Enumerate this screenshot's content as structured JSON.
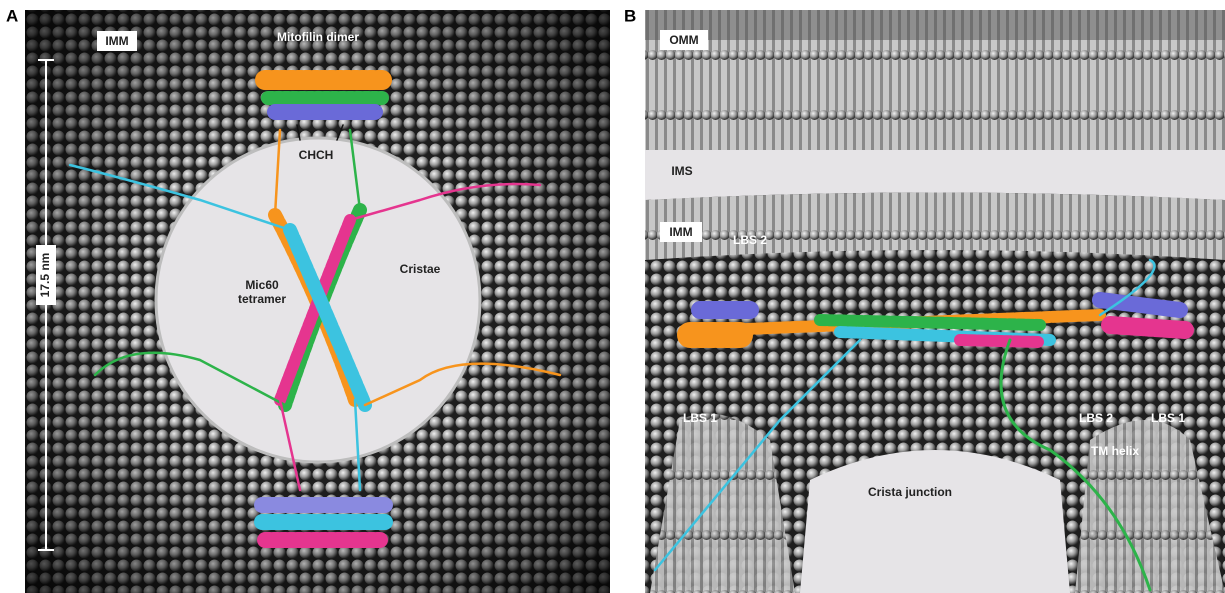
{
  "panels": [
    {
      "label": "A",
      "texts": [
        "IMM",
        "Mitofilin dimer",
        "CHCH",
        "17.5 nm",
        "Mic60 tetramer",
        "Cristae"
      ]
    },
    {
      "label": "B",
      "texts": [
        "OMM",
        "IMS",
        "IMM",
        "LBS 2",
        "LBS 1",
        "Crista junction",
        "TM helix",
        "LBS 2",
        "LBS 1"
      ]
    }
  ]
}
